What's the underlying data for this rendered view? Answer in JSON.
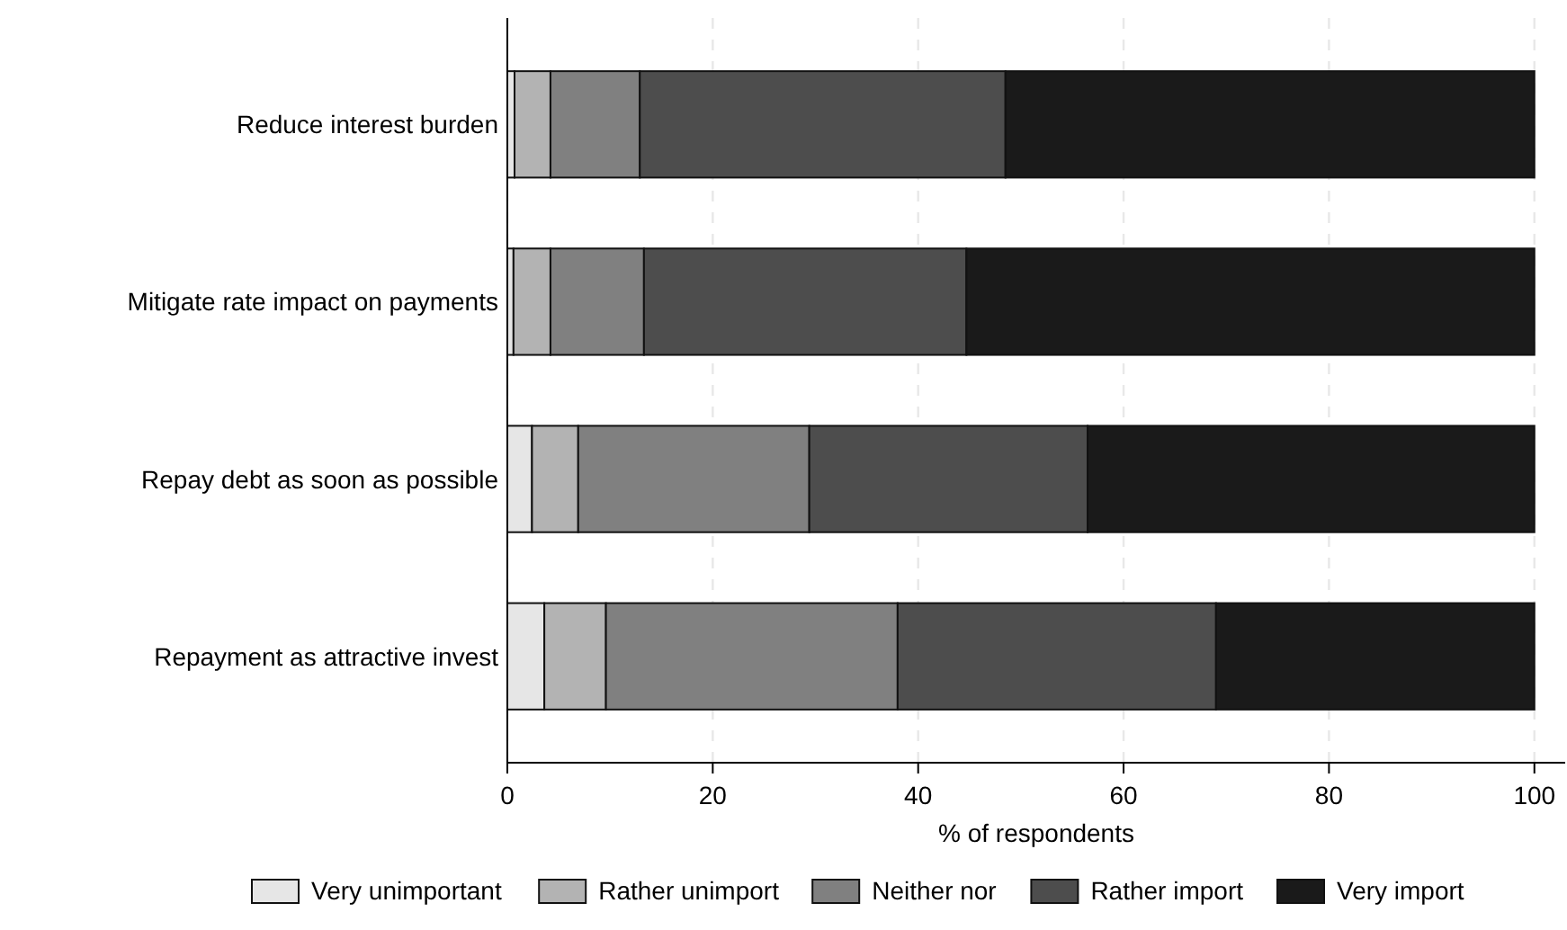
{
  "chart_data": {
    "type": "bar",
    "orientation": "horizontal",
    "stacked": true,
    "xlabel": "% of respondents",
    "categories": [
      "Reduce interest burden",
      "Mitigate rate impact on payments",
      "Repay debt as soon as possible",
      "Repayment as attractive invest"
    ],
    "series": [
      {
        "name": "Very unimportant",
        "color": "#e6e6e6",
        "values": [
          0.7,
          0.6,
          2.4,
          3.6
        ]
      },
      {
        "name": "Rather unimport",
        "color": "#b3b3b3",
        "values": [
          3.5,
          3.6,
          4.5,
          6.0
        ]
      },
      {
        "name": "Neither nor",
        "color": "#808080",
        "values": [
          8.7,
          9.1,
          22.5,
          28.4
        ]
      },
      {
        "name": "Rather import",
        "color": "#4d4d4d",
        "values": [
          35.6,
          31.4,
          27.1,
          31.0
        ]
      },
      {
        "name": "Very import",
        "color": "#1a1a1a",
        "values": [
          51.5,
          55.3,
          43.5,
          31.0
        ]
      }
    ],
    "xlim": [
      0,
      103
    ],
    "xticks": [
      0,
      20,
      40,
      60,
      80,
      100
    ],
    "grid": "x",
    "legend": "bottom"
  }
}
